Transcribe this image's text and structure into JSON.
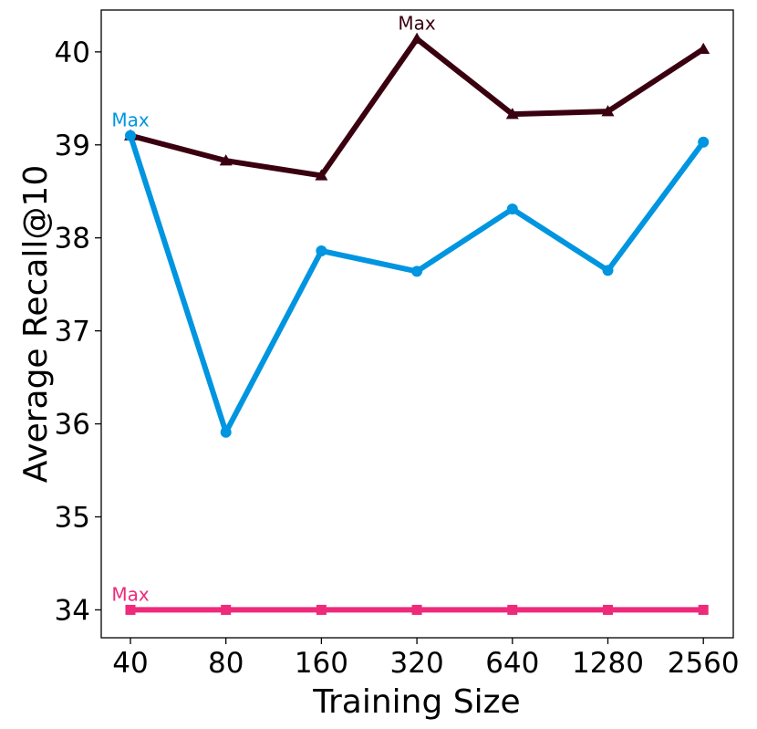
{
  "chart_data": {
    "type": "line",
    "xlabel": "Training Size",
    "ylabel": "Average Recall@10",
    "x_scale": "log2",
    "categories": [
      "40",
      "80",
      "160",
      "320",
      "640",
      "1280",
      "2560"
    ],
    "ylim": [
      33.7,
      40.45
    ],
    "yticks": [
      "34",
      "35",
      "36",
      "37",
      "38",
      "39",
      "40"
    ],
    "grid": false,
    "legend": "none",
    "series": [
      {
        "color": "#3a0010",
        "marker": "triangle",
        "values": [
          39.1,
          38.83,
          38.67,
          40.14,
          39.33,
          39.36,
          40.03
        ],
        "annotation": {
          "text": "Max",
          "index": 3
        }
      },
      {
        "color": "#0095e0",
        "marker": "circle",
        "values": [
          39.1,
          35.91,
          37.86,
          37.64,
          38.31,
          37.65,
          39.03
        ],
        "annotation": {
          "text": "Max",
          "index": 0
        }
      },
      {
        "color": "#ee2a7b",
        "marker": "square",
        "values": [
          34.0,
          34.0,
          34.0,
          34.0,
          34.0,
          34.0,
          34.0
        ],
        "annotation": {
          "text": "Max",
          "index": 0
        }
      }
    ]
  }
}
